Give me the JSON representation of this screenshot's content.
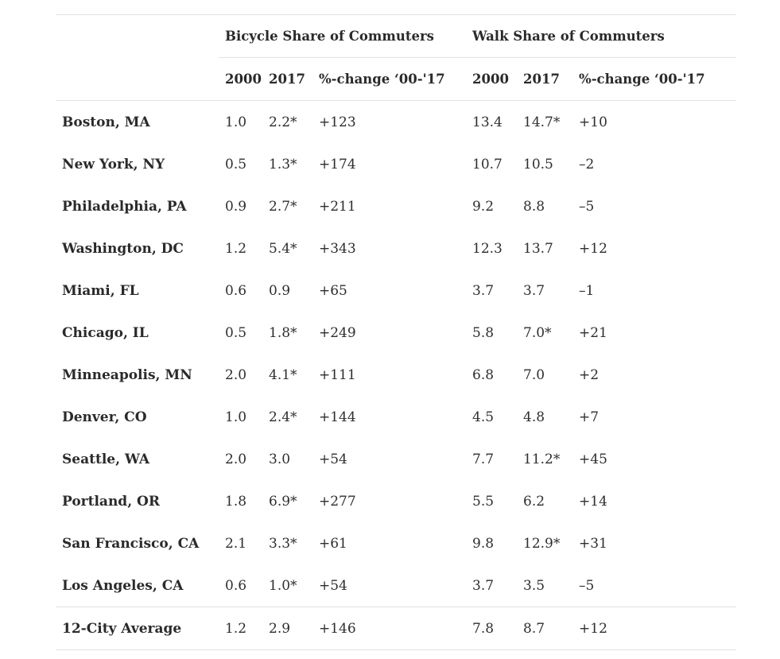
{
  "groups": {
    "bicycle": "Bicycle Share of Commuters",
    "walk": "Walk Share of Commuters"
  },
  "subheaders": {
    "bicycle": [
      "2000",
      "2017",
      "%-change ‘00-'17"
    ],
    "walk": [
      "2000",
      "2017",
      "%-change ‘00-'17"
    ]
  },
  "rows": [
    {
      "city": "Boston, MA",
      "b2000": "1.0",
      "b2017": "2.2*",
      "bchg": "+123",
      "w2000": "13.4",
      "w2017": "14.7*",
      "wchg": "+10"
    },
    {
      "city": "New York, NY",
      "b2000": "0.5",
      "b2017": "1.3*",
      "bchg": "+174",
      "w2000": "10.7",
      "w2017": "10.5",
      "wchg": "–2"
    },
    {
      "city": "Philadelphia, PA",
      "b2000": "0.9",
      "b2017": "2.7*",
      "bchg": "+211",
      "w2000": "9.2",
      "w2017": "8.8",
      "wchg": "–5"
    },
    {
      "city": "Washington, DC",
      "b2000": "1.2",
      "b2017": "5.4*",
      "bchg": "+343",
      "w2000": "12.3",
      "w2017": "13.7",
      "wchg": "+12"
    },
    {
      "city": "Miami, FL",
      "b2000": "0.6",
      "b2017": "0.9",
      "bchg": "+65",
      "w2000": "3.7",
      "w2017": "3.7",
      "wchg": "–1"
    },
    {
      "city": "Chicago, IL",
      "b2000": "0.5",
      "b2017": "1.8*",
      "bchg": "+249",
      "w2000": "5.8",
      "w2017": "7.0*",
      "wchg": "+21"
    },
    {
      "city": "Minneapolis, MN",
      "b2000": "2.0",
      "b2017": "4.1*",
      "bchg": "+111",
      "w2000": "6.8",
      "w2017": "7.0",
      "wchg": "+2"
    },
    {
      "city": "Denver, CO",
      "b2000": "1.0",
      "b2017": "2.4*",
      "bchg": "+144",
      "w2000": "4.5",
      "w2017": "4.8",
      "wchg": "+7"
    },
    {
      "city": "Seattle, WA",
      "b2000": "2.0",
      "b2017": "3.0",
      "bchg": "+54",
      "w2000": "7.7",
      "w2017": "11.2*",
      "wchg": "+45"
    },
    {
      "city": "Portland, OR",
      "b2000": "1.8",
      "b2017": "6.9*",
      "bchg": "+277",
      "w2000": "5.5",
      "w2017": "6.2",
      "wchg": "+14"
    },
    {
      "city": "San Francisco, CA",
      "b2000": "2.1",
      "b2017": "3.3*",
      "bchg": "+61",
      "w2000": "9.8",
      "w2017": "12.9*",
      "wchg": "+31"
    },
    {
      "city": "Los Angeles, CA",
      "b2000": "0.6",
      "b2017": "1.0*",
      "bchg": "+54",
      "w2000": "3.7",
      "w2017": "3.5",
      "wchg": "–5"
    }
  ],
  "average": {
    "city": "12-City Average",
    "b2000": "1.2",
    "b2017": "2.9",
    "bchg": "+146",
    "w2000": "7.8",
    "w2017": "8.7",
    "wchg": "+12"
  }
}
